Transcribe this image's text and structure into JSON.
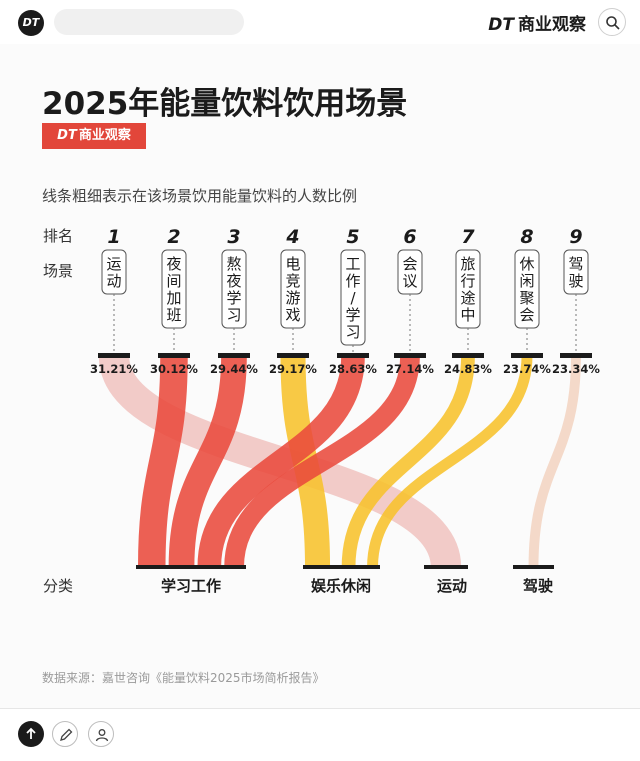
{
  "top_bar": {
    "app_logo": "DT",
    "brand_dt": "DT",
    "brand_name": "商业观察"
  },
  "card": {
    "title": "2025年能量饮料饮用场景",
    "badge_dt": "DT",
    "badge_name": "商业观察",
    "subtitle": "线条粗细表示在该场景饮用能量饮料的人数比例",
    "source": "数据来源：嘉世咨询《能量饮料2025市场简析报告》"
  },
  "chart_data": {
    "type": "sankey",
    "row_labels": {
      "rank": "排名",
      "scene": "场景",
      "category": "分类"
    },
    "scenes": [
      {
        "rank": "1",
        "name": "运动",
        "value": 31.21,
        "label": "31.21%",
        "category": "运动"
      },
      {
        "rank": "2",
        "name": "夜间加班",
        "value": 30.12,
        "label": "30.12%",
        "category": "学习工作"
      },
      {
        "rank": "3",
        "name": "熬夜学习",
        "value": 29.44,
        "label": "29.44%",
        "category": "学习工作"
      },
      {
        "rank": "4",
        "name": "电竞游戏",
        "value": 29.17,
        "label": "29.17%",
        "category": "娱乐休闲"
      },
      {
        "rank": "5",
        "name": "工作/学习",
        "value": 28.63,
        "label": "28.63%",
        "category": "学习工作"
      },
      {
        "rank": "6",
        "name": "会议",
        "value": 27.14,
        "label": "27.14%",
        "category": "学习工作"
      },
      {
        "rank": "7",
        "name": "旅行途中",
        "value": 24.83,
        "label": "24.83%",
        "category": "娱乐休闲"
      },
      {
        "rank": "8",
        "name": "休闲聚会",
        "value": 23.74,
        "label": "23.74%",
        "category": "娱乐休闲"
      },
      {
        "rank": "9",
        "name": "驾驶",
        "value": 23.34,
        "label": "23.34%",
        "category": "驾驶"
      }
    ],
    "categories": [
      "学习工作",
      "娱乐休闲",
      "运动",
      "驾驶"
    ],
    "colors": {
      "学习工作": "#e94a3c",
      "娱乐休闲": "#f7c12b",
      "运动": "#f0c4c0",
      "驾驶": "#f2d4c2"
    }
  }
}
